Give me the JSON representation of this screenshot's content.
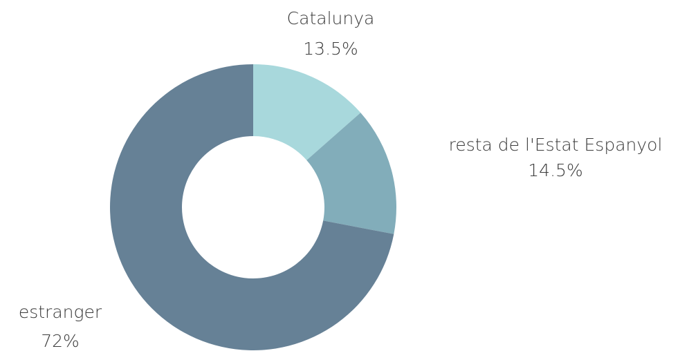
{
  "chart_data": {
    "type": "donut",
    "categories": [
      "Catalunya",
      "resta de l'Estat Espanyol",
      "estranger"
    ],
    "values": [
      13.5,
      14.5,
      72
    ],
    "value_labels": [
      "13.5%",
      "14.5%",
      "72%"
    ],
    "colors": [
      "#a8d8dc",
      "#82adba",
      "#668196"
    ]
  }
}
